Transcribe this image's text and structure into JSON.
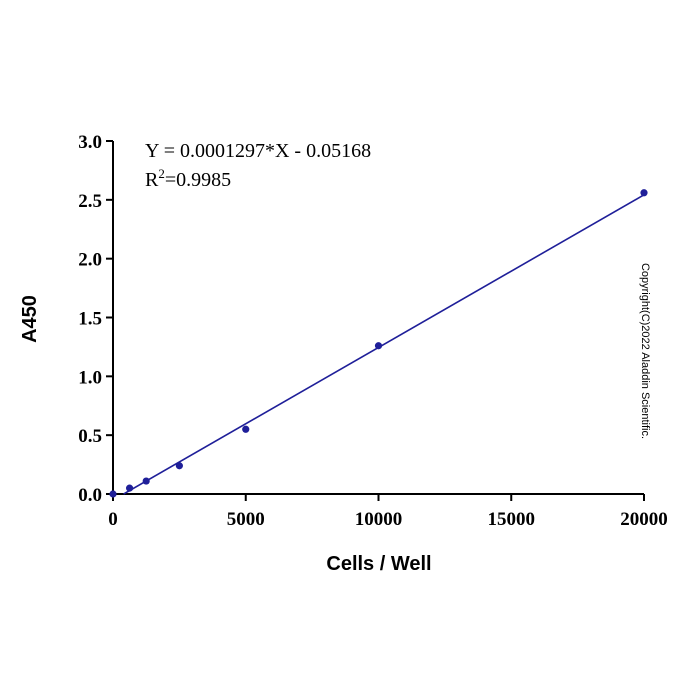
{
  "chart_data": {
    "type": "scatter",
    "xlabel": "Cells / Well",
    "ylabel": "A450",
    "xlim": [
      0,
      20000
    ],
    "ylim": [
      0,
      3.0
    ],
    "x_ticks": [
      "0",
      "5000",
      "10000",
      "15000",
      "20000"
    ],
    "y_ticks": [
      "0.0",
      "0.5",
      "1.0",
      "1.5",
      "2.0",
      "2.5",
      "3.0"
    ],
    "grid": false,
    "series": [
      {
        "points": [
          {
            "x": 0,
            "y": 0.0
          },
          {
            "x": 625,
            "y": 0.05
          },
          {
            "x": 1250,
            "y": 0.11
          },
          {
            "x": 2500,
            "y": 0.24
          },
          {
            "x": 5000,
            "y": 0.55
          },
          {
            "x": 10000,
            "y": 1.26
          },
          {
            "x": 20000,
            "y": 2.56
          }
        ],
        "color": "#1f1f99"
      }
    ],
    "fit": {
      "slope": 0.0001297,
      "intercept": -0.05168,
      "x_range": [
        398,
        20000
      ],
      "color": "#1f1f99"
    },
    "annotations": {
      "equation": "Y = 0.0001297*X - 0.05168",
      "r2_prefix": "R",
      "r2_sup": "2",
      "r2_value": "=0.9985"
    },
    "watermark": "Copyright(C)2022 Aladdin Scientific."
  }
}
